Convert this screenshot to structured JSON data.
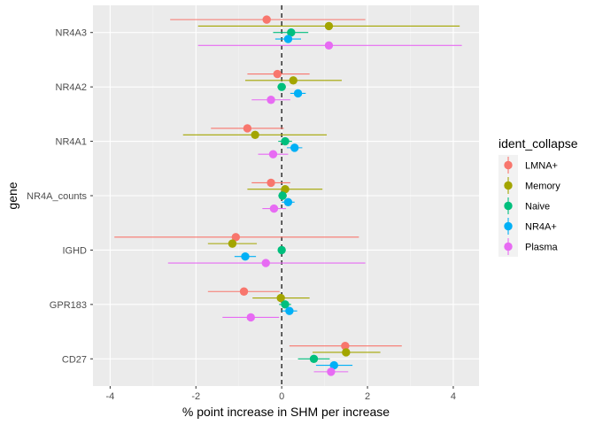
{
  "chart_data": {
    "type": "pointrange",
    "xlabel": "% point increase in SHM per increase",
    "ylabel": "gene",
    "xlim": [
      -4.4,
      4.6
    ],
    "x_ticks": [
      -4,
      -2,
      0,
      2,
      4
    ],
    "reference_line_x": 0,
    "categories": [
      "NR4A3",
      "NR4A2",
      "NR4A1",
      "NR4A_counts",
      "IGHD",
      "GPR183",
      "CD27"
    ],
    "legend_title": "ident_collapse",
    "series": [
      {
        "name": "LMNA+",
        "color": "#F8766D",
        "points": [
          {
            "gene": "NR4A3",
            "estimate": -0.35,
            "low": -2.6,
            "high": 1.95
          },
          {
            "gene": "NR4A2",
            "estimate": -0.1,
            "low": -0.8,
            "high": 0.65
          },
          {
            "gene": "NR4A1",
            "estimate": -0.8,
            "low": -1.65,
            "high": 0.05
          },
          {
            "gene": "NR4A_counts",
            "estimate": -0.25,
            "low": -0.7,
            "high": 0.2
          },
          {
            "gene": "IGHD",
            "estimate": -1.07,
            "low": -3.9,
            "high": 1.8
          },
          {
            "gene": "GPR183",
            "estimate": -0.88,
            "low": -1.72,
            "high": -0.05
          },
          {
            "gene": "CD27",
            "estimate": 1.48,
            "low": 0.18,
            "high": 2.8
          }
        ]
      },
      {
        "name": "Memory",
        "color": "#A3A500",
        "points": [
          {
            "gene": "NR4A3",
            "estimate": 1.1,
            "low": -1.95,
            "high": 4.15
          },
          {
            "gene": "NR4A2",
            "estimate": 0.27,
            "low": -0.85,
            "high": 1.4
          },
          {
            "gene": "NR4A1",
            "estimate": -0.62,
            "low": -2.3,
            "high": 1.05
          },
          {
            "gene": "NR4A_counts",
            "estimate": 0.08,
            "low": -0.8,
            "high": 0.95
          },
          {
            "gene": "IGHD",
            "estimate": -1.15,
            "low": -1.72,
            "high": -0.58
          },
          {
            "gene": "GPR183",
            "estimate": -0.02,
            "low": -0.68,
            "high": 0.65
          },
          {
            "gene": "CD27",
            "estimate": 1.5,
            "low": 0.72,
            "high": 2.3
          }
        ]
      },
      {
        "name": "Naive",
        "color": "#00BF7D",
        "points": [
          {
            "gene": "NR4A3",
            "estimate": 0.22,
            "low": -0.2,
            "high": 0.62
          },
          {
            "gene": "NR4A2",
            "estimate": 0.0,
            "low": -0.1,
            "high": 0.1
          },
          {
            "gene": "NR4A1",
            "estimate": 0.08,
            "low": -0.08,
            "high": 0.24
          },
          {
            "gene": "NR4A_counts",
            "estimate": 0.02,
            "low": -0.08,
            "high": 0.12
          },
          {
            "gene": "IGHD",
            "estimate": 0.0,
            "low": -0.05,
            "high": 0.05
          },
          {
            "gene": "GPR183",
            "estimate": 0.08,
            "low": -0.06,
            "high": 0.22
          },
          {
            "gene": "CD27",
            "estimate": 0.75,
            "low": 0.38,
            "high": 1.12
          }
        ]
      },
      {
        "name": "NR4A+",
        "color": "#00B0F6",
        "points": [
          {
            "gene": "NR4A3",
            "estimate": 0.15,
            "low": -0.15,
            "high": 0.45
          },
          {
            "gene": "NR4A2",
            "estimate": 0.38,
            "low": 0.2,
            "high": 0.56
          },
          {
            "gene": "NR4A1",
            "estimate": 0.3,
            "low": 0.12,
            "high": 0.48
          },
          {
            "gene": "NR4A_counts",
            "estimate": 0.15,
            "low": 0.0,
            "high": 0.3
          },
          {
            "gene": "IGHD",
            "estimate": -0.85,
            "low": -1.1,
            "high": -0.6
          },
          {
            "gene": "GPR183",
            "estimate": 0.18,
            "low": 0.0,
            "high": 0.36
          },
          {
            "gene": "CD27",
            "estimate": 1.22,
            "low": 0.8,
            "high": 1.65
          }
        ]
      },
      {
        "name": "Plasma",
        "color": "#E76BF3",
        "points": [
          {
            "gene": "NR4A3",
            "estimate": 1.1,
            "low": -1.95,
            "high": 4.2
          },
          {
            "gene": "NR4A2",
            "estimate": -0.25,
            "low": -0.7,
            "high": 0.2
          },
          {
            "gene": "NR4A1",
            "estimate": -0.2,
            "low": -0.55,
            "high": 0.15
          },
          {
            "gene": "NR4A_counts",
            "estimate": -0.18,
            "low": -0.45,
            "high": 0.1
          },
          {
            "gene": "IGHD",
            "estimate": -0.37,
            "low": -2.65,
            "high": 1.95
          },
          {
            "gene": "GPR183",
            "estimate": -0.72,
            "low": -1.38,
            "high": -0.06
          },
          {
            "gene": "CD27",
            "estimate": 1.15,
            "low": 0.75,
            "high": 1.55
          }
        ]
      }
    ]
  }
}
